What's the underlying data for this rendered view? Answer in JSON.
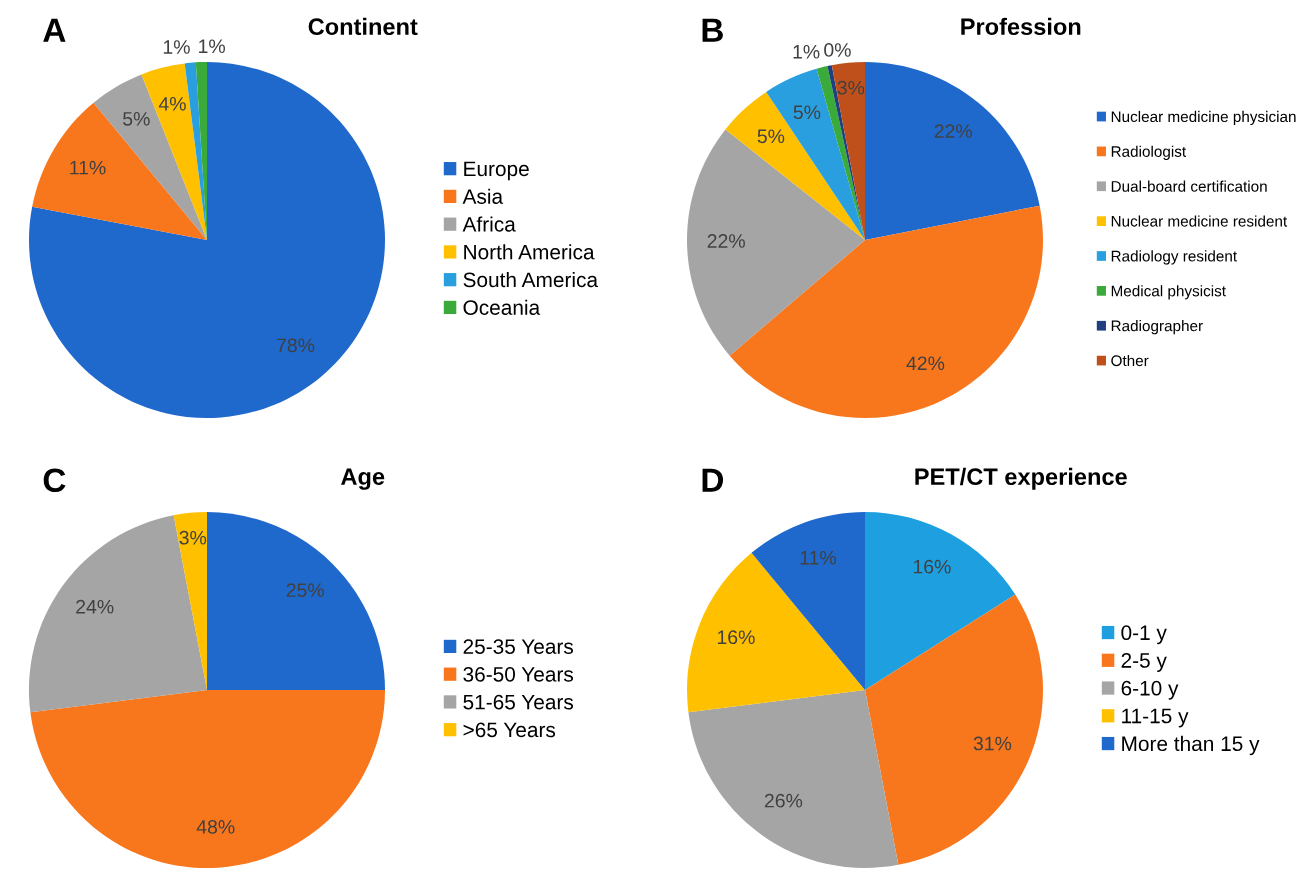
{
  "chart_data": [
    {
      "type": "pie",
      "title": "Continent",
      "annotations": [
        "A"
      ],
      "legend": "right",
      "categories": [
        "Europe",
        "Asia",
        "Africa",
        "North America",
        "South America",
        "Oceania"
      ],
      "values": [
        78,
        11,
        5,
        4,
        1,
        1
      ],
      "value_labels": [
        "78%",
        "11%",
        "5%",
        "4%",
        "1%",
        "1%"
      ],
      "colors": [
        "#1f68cc",
        "#f8771c",
        "#a5a5a5",
        "#ffc000",
        "#2a9fe0",
        "#3aaa3a"
      ]
    },
    {
      "type": "pie",
      "title": "Profession",
      "annotations": [
        "B"
      ],
      "legend": "right",
      "categories": [
        "Nuclear medicine physician",
        "Radiologist",
        "Dual-board certification",
        "Nuclear medicine resident",
        "Radiology resident",
        "Medical physicist",
        "Radiographer",
        "Other"
      ],
      "values": [
        22,
        42,
        22,
        5,
        5,
        1,
        0.4,
        3
      ],
      "value_labels": [
        "22%",
        "42%",
        "22%",
        "5%",
        "5%",
        "1%",
        "0%",
        "3%"
      ],
      "colors": [
        "#1f68cc",
        "#f8771c",
        "#a5a5a5",
        "#ffc000",
        "#2a9fe0",
        "#3aaa3a",
        "#1f3f7f",
        "#c0501b"
      ]
    },
    {
      "type": "pie",
      "title": "Age",
      "annotations": [
        "C"
      ],
      "legend": "right",
      "categories": [
        "25-35 Years",
        "36-50 Years",
        "51-65 Years",
        ">65 Years"
      ],
      "values": [
        25,
        48,
        24,
        3
      ],
      "value_labels": [
        "25%",
        "48%",
        "24%",
        "3%"
      ],
      "colors": [
        "#1f68cc",
        "#f8771c",
        "#a5a5a5",
        "#ffc000"
      ]
    },
    {
      "type": "pie",
      "title": "PET/CT experience",
      "annotations": [
        "D"
      ],
      "legend": "right",
      "categories": [
        "0-1 y",
        "2-5 y",
        "6-10 y",
        "11-15 y",
        "More than 15 y"
      ],
      "values": [
        16,
        31,
        26,
        16,
        11
      ],
      "value_labels": [
        "16%",
        "31%",
        "26%",
        "16%",
        "11%"
      ],
      "colors": [
        "#1ea0e0",
        "#f8771c",
        "#a5a5a5",
        "#ffc000",
        "#1f68cc"
      ]
    }
  ]
}
